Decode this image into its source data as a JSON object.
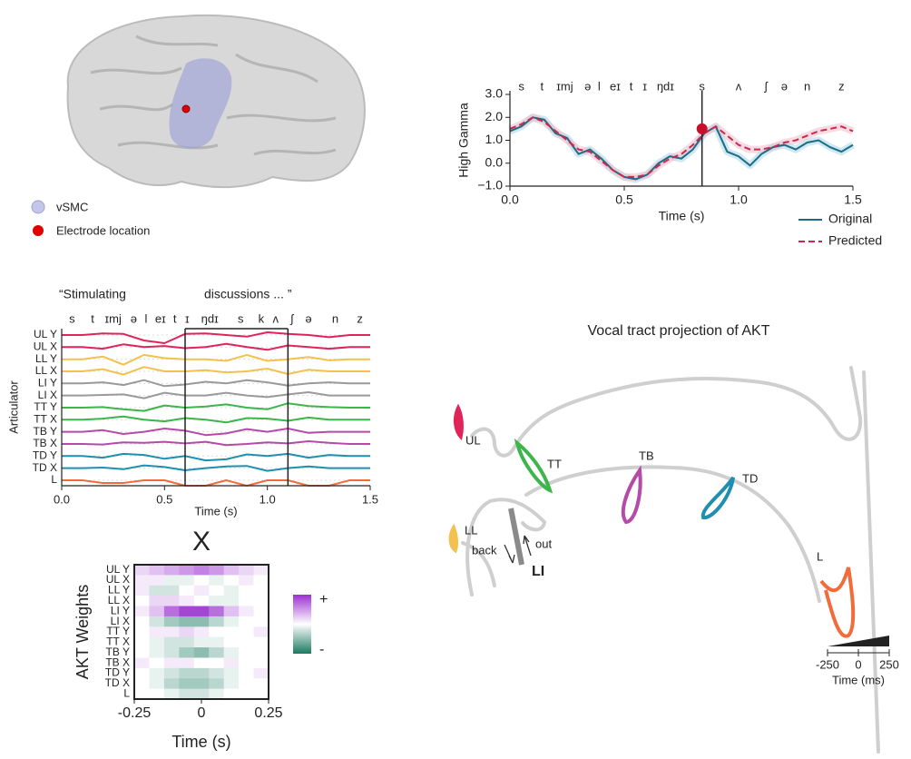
{
  "brain_legend": {
    "items": [
      "vSMC",
      "Electrode location"
    ]
  },
  "chart_data": [
    {
      "type": "line",
      "ylabel": "High Gamma",
      "xlabel": "Time (s)",
      "xlim": [
        0,
        1.5
      ],
      "xticks": [
        {
          "value": 0,
          "label": "0.0"
        },
        0.5,
        {
          "value": 1,
          "label": "1.0"
        },
        1.5
      ],
      "ylim": [
        -1,
        3
      ],
      "yticks": [
        {
          "value": -1,
          "label": "−1.0"
        },
        {
          "value": 0,
          "label": "0.0"
        },
        {
          "value": 1,
          "label": "1.0"
        },
        {
          "value": 2,
          "label": "2.0"
        },
        {
          "value": 3,
          "label": "3.0"
        }
      ],
      "phonemes": [
        {
          "text": "s",
          "x": 0.05
        },
        {
          "text": "t",
          "x": 0.14
        },
        {
          "text": "ɪmj",
          "x": 0.24
        },
        {
          "text": "ə",
          "x": 0.34
        },
        {
          "text": "l",
          "x": 0.39
        },
        {
          "text": "eɪ",
          "x": 0.46
        },
        {
          "text": "t",
          "x": 0.53
        },
        {
          "text": "ɪ",
          "x": 0.59
        },
        {
          "text": "ŋdɪ",
          "x": 0.68
        },
        {
          "text": "s",
          "x": 0.84
        },
        {
          "text": "ʌ",
          "x": 1.0
        },
        {
          "text": "ʃ",
          "x": 1.12
        },
        {
          "text": "ə",
          "x": 1.2
        },
        {
          "text": "n",
          "x": 1.3
        },
        {
          "text": "z",
          "x": 1.45
        }
      ],
      "cursor": {
        "x": 0.84,
        "y": 1.5
      },
      "x": [
        0,
        0.05,
        0.1,
        0.15,
        0.2,
        0.25,
        0.3,
        0.35,
        0.4,
        0.45,
        0.5,
        0.55,
        0.6,
        0.65,
        0.7,
        0.75,
        0.8,
        0.85,
        0.9,
        0.95,
        1.0,
        1.05,
        1.1,
        1.15,
        1.2,
        1.25,
        1.3,
        1.35,
        1.4,
        1.45,
        1.5
      ],
      "series": [
        {
          "name": "Original",
          "color": "#1d6b87",
          "dash": false,
          "values": [
            1.4,
            1.6,
            2.0,
            1.9,
            1.3,
            1.1,
            0.4,
            0.6,
            0.2,
            -0.3,
            -0.6,
            -0.7,
            -0.5,
            0.0,
            0.3,
            0.2,
            0.6,
            1.3,
            1.6,
            0.5,
            0.3,
            -0.1,
            0.4,
            0.7,
            0.8,
            0.6,
            0.9,
            1.0,
            0.7,
            0.5,
            0.8
          ]
        },
        {
          "name": "Predicted",
          "color": "#c8294f",
          "dash": true,
          "values": [
            1.5,
            1.7,
            2.0,
            1.8,
            1.4,
            1.0,
            0.6,
            0.5,
            0.1,
            -0.3,
            -0.6,
            -0.6,
            -0.5,
            -0.1,
            0.2,
            0.4,
            0.8,
            1.3,
            1.6,
            1.2,
            0.8,
            0.6,
            0.6,
            0.7,
            0.9,
            1.0,
            1.2,
            1.4,
            1.5,
            1.6,
            1.4
          ]
        }
      ]
    },
    {
      "type": "traces",
      "ylabel": "Articulator",
      "xlabel": "Time (s)",
      "quotes": [
        "“Stimulating",
        "discussions ... ”"
      ],
      "xlim": [
        0,
        1.5
      ],
      "xticks": [
        {
          "value": 0,
          "label": "0.0"
        },
        0.5,
        {
          "value": 1,
          "label": "1.0"
        },
        1.5
      ],
      "highlight": [
        0.6,
        1.1
      ],
      "phonemes": [
        {
          "text": "s",
          "x": 0.05
        },
        {
          "text": "t",
          "x": 0.15
        },
        {
          "text": "ɪmj",
          "x": 0.25
        },
        {
          "text": "ə",
          "x": 0.35
        },
        {
          "text": "l",
          "x": 0.41
        },
        {
          "text": "eɪ",
          "x": 0.48
        },
        {
          "text": "t",
          "x": 0.55
        },
        {
          "text": "ɪ",
          "x": 0.61
        },
        {
          "text": "ŋdɪ",
          "x": 0.72
        },
        {
          "text": "s",
          "x": 0.87
        },
        {
          "text": "k",
          "x": 0.97
        },
        {
          "text": "ʌ",
          "x": 1.04
        },
        {
          "text": "ʃ",
          "x": 1.12
        },
        {
          "text": "ə",
          "x": 1.2
        },
        {
          "text": "n",
          "x": 1.33
        },
        {
          "text": "z",
          "x": 1.45
        }
      ],
      "x": [
        0,
        0.1,
        0.2,
        0.3,
        0.4,
        0.5,
        0.6,
        0.7,
        0.8,
        0.9,
        1.0,
        1.1,
        1.2,
        1.3,
        1.4,
        1.5
      ],
      "series": [
        {
          "name": "UL Y",
          "color": "#e0245a",
          "values": [
            0,
            0,
            0.3,
            0.2,
            -1,
            -1.5,
            0.2,
            0.3,
            0,
            -0.3,
            0.5,
            0.2,
            0,
            -0.4,
            0,
            0
          ]
        },
        {
          "name": "UL X",
          "color": "#e0245a",
          "values": [
            0,
            0,
            -0.3,
            0.5,
            0,
            0.2,
            -0.2,
            0,
            0.6,
            0,
            -0.5,
            0.3,
            0,
            -0.3,
            0,
            0
          ]
        },
        {
          "name": "LL Y",
          "color": "#f2c14e",
          "values": [
            0,
            0,
            0.5,
            -1,
            0.8,
            0.2,
            0,
            0,
            -0.3,
            0.8,
            -0.3,
            0,
            0.4,
            -0.2,
            0,
            0
          ]
        },
        {
          "name": "LL X",
          "color": "#f2c14e",
          "values": [
            0,
            0,
            0.4,
            -0.6,
            0.8,
            0,
            0,
            0.2,
            -0.2,
            0,
            0.5,
            -0.5,
            0.3,
            0,
            0,
            0
          ]
        },
        {
          "name": "LI Y",
          "color": "#9a9a9a",
          "values": [
            0,
            0,
            0.2,
            -0.3,
            0.6,
            -0.5,
            -0.2,
            0.3,
            0,
            0.6,
            0.2,
            -0.4,
            0,
            0.2,
            0,
            0
          ]
        },
        {
          "name": "LI X",
          "color": "#9a9a9a",
          "values": [
            0,
            0,
            0.1,
            0.2,
            -0.5,
            0.5,
            0,
            0,
            0.5,
            0,
            -0.3,
            0.2,
            0.6,
            0,
            0,
            0
          ]
        },
        {
          "name": "TT Y",
          "color": "#3cb54a",
          "values": [
            0,
            0,
            0.1,
            -0.3,
            -0.6,
            0.4,
            0,
            0.2,
            0.6,
            0,
            -0.3,
            0.8,
            0.3,
            0.1,
            0,
            0
          ]
        },
        {
          "name": "TT X",
          "color": "#3cb54a",
          "values": [
            0,
            0,
            0.2,
            0.6,
            0,
            -0.3,
            0.3,
            0,
            -0.5,
            0.3,
            0.2,
            -0.2,
            0.4,
            0,
            0,
            0
          ]
        },
        {
          "name": "TB Y",
          "color": "#b54aa8",
          "values": [
            0,
            0,
            0.3,
            -0.4,
            0,
            0.6,
            0.2,
            -0.6,
            -0.3,
            0.5,
            0,
            0.6,
            -0.2,
            0,
            0,
            0
          ]
        },
        {
          "name": "TB X",
          "color": "#b54aa8",
          "values": [
            0,
            0,
            -0.1,
            0.3,
            0.2,
            0.4,
            0.1,
            0.4,
            -0.2,
            0,
            0.3,
            0.1,
            0.5,
            0.2,
            0,
            0
          ]
        },
        {
          "name": "TD Y",
          "color": "#1f8fb0",
          "values": [
            0,
            0,
            -0.3,
            0.4,
            0.2,
            -0.5,
            0,
            -0.8,
            -0.6,
            0.3,
            0,
            0.4,
            -0.3,
            0.2,
            0,
            0
          ]
        },
        {
          "name": "TD X",
          "color": "#1f8fb0",
          "values": [
            0,
            0,
            0.1,
            -0.2,
            0.5,
            0.2,
            -0.4,
            0,
            0.3,
            0.4,
            -0.5,
            0,
            0.3,
            0,
            0,
            0
          ]
        },
        {
          "name": "L",
          "color": "#f26b3a",
          "values": [
            0,
            0,
            -0.5,
            -0.5,
            0,
            0,
            -1,
            -1,
            0,
            -1,
            0,
            0,
            -1,
            -1,
            0,
            0
          ]
        }
      ]
    },
    {
      "type": "heatmap",
      "title": "X",
      "ylabel": "AKT Weights",
      "xlabel": "Time (s)",
      "xlim": [
        -0.25,
        0.25
      ],
      "xticks": [
        -0.25,
        0,
        0.25
      ],
      "rows": [
        "UL Y",
        "UL X",
        "LL Y",
        "LL X",
        "LI Y",
        "LI X",
        "TT Y",
        "TT X",
        "TB Y",
        "TB X",
        "TD Y",
        "TD X",
        "L"
      ],
      "clim": [
        -1,
        1
      ],
      "colorbar_ticks": [
        {
          "value": 1,
          "label": "+"
        },
        {
          "value": -1,
          "label": "-"
        }
      ],
      "values": [
        [
          0.2,
          0.3,
          0.4,
          0.5,
          0.6,
          0.5,
          0.3,
          0.2,
          0.1
        ],
        [
          0.1,
          0.1,
          -0.1,
          -0.1,
          0,
          -0.1,
          0,
          0.1,
          0
        ],
        [
          0.1,
          -0.2,
          -0.2,
          0,
          0.1,
          0,
          -0.1,
          0,
          0
        ],
        [
          0,
          0.2,
          0.2,
          0.1,
          0,
          -0.1,
          -0.1,
          0,
          0
        ],
        [
          0.1,
          0.3,
          0.7,
          0.9,
          0.9,
          0.7,
          0.3,
          0.1,
          0
        ],
        [
          0,
          -0.2,
          -0.4,
          -0.5,
          -0.5,
          -0.3,
          -0.1,
          0,
          0
        ],
        [
          0,
          0.1,
          0.1,
          0.2,
          0.1,
          0,
          0,
          0,
          0.1
        ],
        [
          0,
          -0.1,
          -0.2,
          -0.2,
          -0.1,
          -0.1,
          0,
          0,
          0
        ],
        [
          0,
          -0.1,
          -0.2,
          -0.4,
          -0.5,
          -0.3,
          -0.1,
          0,
          0
        ],
        [
          0.1,
          0,
          0.1,
          0.1,
          0,
          0,
          0.1,
          0,
          0
        ],
        [
          0,
          -0.1,
          -0.2,
          -0.3,
          -0.3,
          -0.2,
          -0.1,
          0,
          0.1
        ],
        [
          0,
          -0.1,
          -0.3,
          -0.4,
          -0.4,
          -0.3,
          -0.1,
          0,
          0
        ],
        [
          0,
          0,
          -0.1,
          -0.2,
          -0.2,
          -0.1,
          0,
          0,
          0
        ]
      ]
    }
  ],
  "vocal_tract": {
    "title": "Vocal tract projection of AKT",
    "labels": {
      "UL": "UL",
      "TT": "TT",
      "TB": "TB",
      "TD": "TD",
      "LL": "LL",
      "LI": "LI",
      "L": "L",
      "back": "back",
      "out": "out"
    },
    "scale": {
      "ticks": [
        -250,
        0,
        250
      ],
      "label": "Time (ms)"
    }
  }
}
